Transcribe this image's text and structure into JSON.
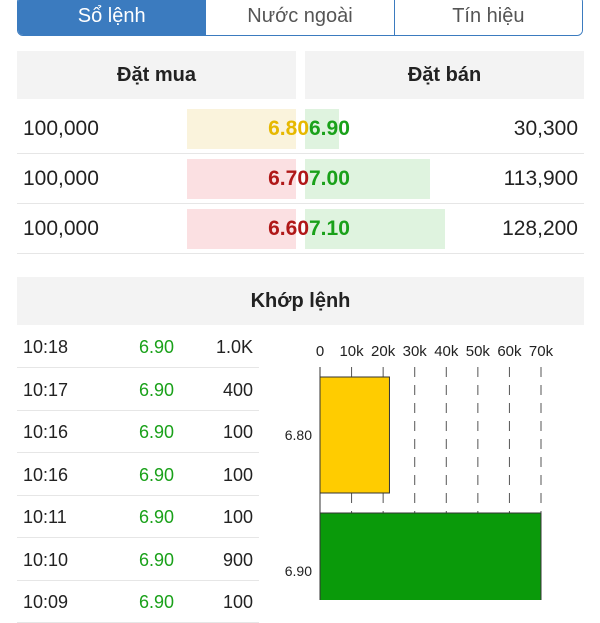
{
  "tabs": [
    {
      "label": "Sổ lệnh",
      "active": true
    },
    {
      "label": "Nước ngoài",
      "active": false
    },
    {
      "label": "Tín hiệu",
      "active": false
    }
  ],
  "order_book": {
    "bid_header": "Đặt mua",
    "ask_header": "Đặt bán",
    "rows": [
      {
        "bid_volume": "100,000",
        "bid_price": "6.80",
        "bid_color": "#e6b800",
        "bid_bar_color": "#faf3dc",
        "ask_price": "6.90",
        "ask_volume": "30,300",
        "ask_fill": 0.24
      },
      {
        "bid_volume": "100,000",
        "bid_price": "6.70",
        "bid_color": "#b01818",
        "bid_bar_color": "#fbe0e2",
        "ask_price": "7.00",
        "ask_volume": "113,900",
        "ask_fill": 0.89
      },
      {
        "bid_volume": "100,000",
        "bid_price": "6.60",
        "bid_color": "#b01818",
        "bid_bar_color": "#fbe0e2",
        "ask_price": "7.10",
        "ask_volume": "128,200",
        "ask_fill": 1.0
      }
    ]
  },
  "matched": {
    "header": "Khớp lệnh",
    "trades": [
      {
        "time": "10:18",
        "price": "6.90",
        "volume": "1.0K"
      },
      {
        "time": "10:17",
        "price": "6.90",
        "volume": "400"
      },
      {
        "time": "10:16",
        "price": "6.90",
        "volume": "100"
      },
      {
        "time": "10:16",
        "price": "6.90",
        "volume": "100"
      },
      {
        "time": "10:11",
        "price": "6.90",
        "volume": "100"
      },
      {
        "time": "10:10",
        "price": "6.90",
        "volume": "900"
      },
      {
        "time": "10:09",
        "price": "6.90",
        "volume": "100"
      }
    ]
  },
  "chart_data": {
    "type": "bar",
    "orientation": "horizontal",
    "categories": [
      "6.80",
      "6.90"
    ],
    "values": [
      22000,
      70000
    ],
    "colors": [
      "#ffcc00",
      "#0a9a0a"
    ],
    "xlim": [
      0,
      70000
    ],
    "xticks": [
      "0",
      "10k",
      "20k",
      "30k",
      "40k",
      "50k",
      "60k",
      "70k"
    ],
    "grid": true
  }
}
